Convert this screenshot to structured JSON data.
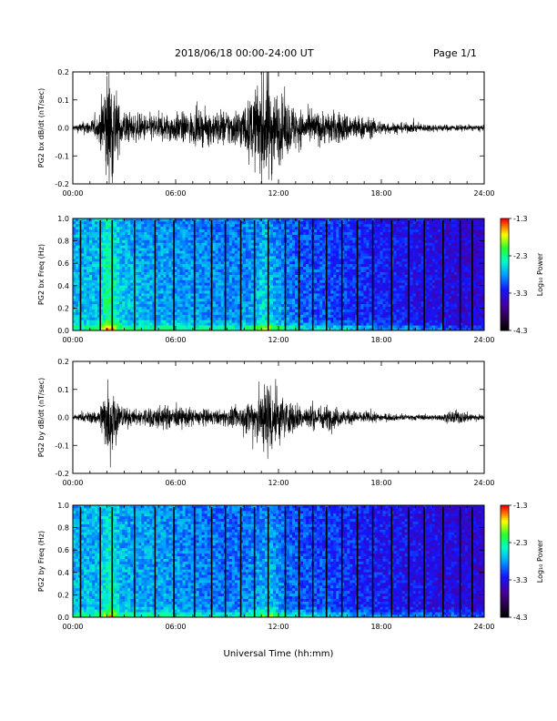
{
  "header": {
    "title": "2018/06/18  00:00-24:00 UT",
    "page": "Page 1/1"
  },
  "x_ticks": [
    "00:00",
    "06:00",
    "12:00",
    "18:00",
    "24:00"
  ],
  "x_title": "Universal Time (hh:mm)",
  "colorbar": {
    "label": "Log₁₀ Power",
    "ticks": [
      "-1.3",
      "-2.3",
      "-3.3",
      "-4.3"
    ]
  },
  "chart_data": [
    {
      "type": "line",
      "ylabel": "PG2 bx dB/dt (nT/sec)",
      "xlim": [
        0,
        24
      ],
      "ylim": [
        -0.2,
        0.2
      ],
      "yticks": [
        "0.2",
        "0.1",
        "0.0",
        "-0.1",
        "-0.2"
      ],
      "envelope": {
        "x_hours": [
          0,
          1.5,
          1.9,
          2.1,
          2.4,
          2.7,
          3.5,
          5.0,
          7.5,
          9.5,
          10.3,
          10.7,
          11.2,
          11.5,
          11.8,
          12.5,
          13.5,
          15.5,
          17.0,
          18.5,
          20.5,
          22.0,
          24.0
        ],
        "amplitude": [
          0.01,
          0.04,
          0.2,
          0.22,
          0.2,
          0.08,
          0.05,
          0.05,
          0.06,
          0.07,
          0.1,
          0.15,
          0.22,
          0.2,
          0.14,
          0.1,
          0.06,
          0.06,
          0.04,
          0.02,
          0.015,
          0.012,
          0.01
        ]
      }
    },
    {
      "type": "heatmap",
      "ylabel": "PG2 bx Freq (Hz)",
      "xlim": [
        0,
        24
      ],
      "ylim": [
        0.0,
        1.0
      ],
      "yticks": [
        "1.0",
        "0.8",
        "0.6",
        "0.4",
        "0.2",
        "0.0"
      ],
      "value_range_log10": [
        -4.3,
        -1.3
      ],
      "gap_lines_hours": [
        0.45,
        1.6,
        2.3,
        3.6,
        4.8,
        5.9,
        7.1,
        8.1,
        8.9,
        9.8,
        10.6,
        11.4,
        12.4,
        13.2,
        14.0,
        14.8,
        15.7,
        16.6,
        17.5,
        18.6,
        19.6,
        20.5,
        21.6,
        22.6,
        23.3
      ]
    },
    {
      "type": "line",
      "ylabel": "PG2 by dB/dt (nT/sec)",
      "xlim": [
        0,
        24
      ],
      "ylim": [
        -0.2,
        0.2
      ],
      "yticks": [
        "0.2",
        "0.1",
        "0.0",
        "-0.1",
        "-0.2"
      ],
      "envelope": {
        "x_hours": [
          0,
          1.5,
          1.9,
          2.2,
          2.5,
          2.8,
          3.5,
          5.0,
          6.5,
          8.5,
          10.0,
          10.5,
          11.0,
          11.5,
          11.9,
          12.5,
          13.5,
          15.0,
          16.0,
          17.5,
          19.0,
          21.5,
          22.2,
          24.0
        ],
        "amplitude": [
          0.012,
          0.03,
          0.12,
          0.2,
          0.1,
          0.05,
          0.03,
          0.05,
          0.04,
          0.03,
          0.05,
          0.1,
          0.12,
          0.18,
          0.12,
          0.07,
          0.05,
          0.05,
          0.03,
          0.02,
          0.012,
          0.012,
          0.03,
          0.01
        ]
      }
    },
    {
      "type": "heatmap",
      "ylabel": "PG2 by Freq (Hz)",
      "xlim": [
        0,
        24
      ],
      "ylim": [
        0.0,
        1.0
      ],
      "yticks": [
        "1.0",
        "0.8",
        "0.6",
        "0.4",
        "0.2",
        "0.0"
      ],
      "value_range_log10": [
        -4.3,
        -1.3
      ],
      "gap_lines_hours": [
        0.45,
        1.6,
        2.3,
        3.6,
        4.8,
        5.9,
        7.1,
        8.1,
        8.9,
        9.8,
        10.6,
        11.4,
        12.4,
        13.2,
        14.0,
        14.8,
        15.7,
        16.6,
        17.5,
        18.6,
        19.6,
        20.5,
        21.6,
        22.6,
        23.3
      ]
    }
  ]
}
